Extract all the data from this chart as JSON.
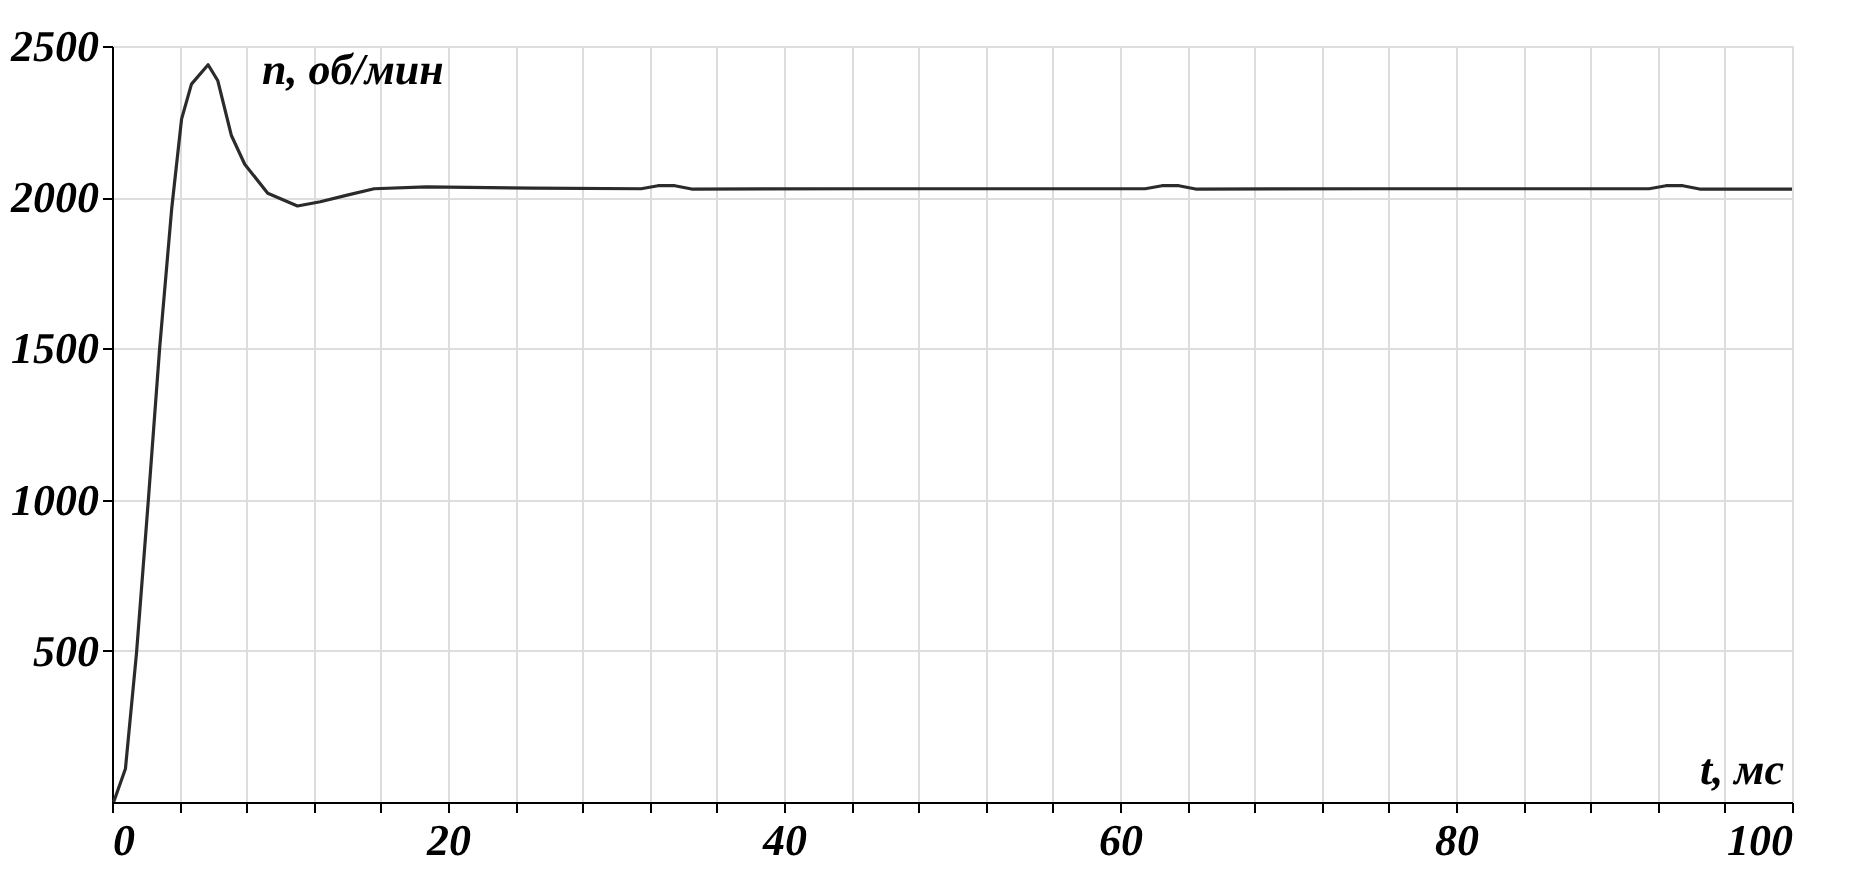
{
  "chart_data": {
    "type": "line",
    "xlabel": "t, мс",
    "ylabel": "n, об/мин",
    "x": [
      0.1,
      0.8,
      1.46,
      2.17,
      2.84,
      3.55,
      4.14,
      4.73,
      5.72,
      6.3,
      7.1,
      7.9,
      9.27,
      11.04,
      12.4,
      14.0,
      15.6,
      18.7,
      25,
      31.5,
      32.5,
      33.5,
      34.5,
      45,
      55,
      61.5,
      62.5,
      63.5,
      64.5,
      75,
      85,
      91.5,
      92.5,
      93.5,
      94.5,
      100
    ],
    "series": [
      {
        "color": "#2b2b2b",
        "values": [
          0,
          110,
          493,
          1003,
          1503,
          1960,
          2258,
          2374,
          2438,
          2385,
          2205,
          2109,
          2013,
          1971,
          1985,
          2007,
          2028,
          2034,
          2030,
          2028,
          2038,
          2038,
          2027,
          2028,
          2028,
          2028,
          2038,
          2038,
          2027,
          2028,
          2028,
          2028,
          2038,
          2038,
          2027,
          2027
        ]
      }
    ],
    "xlim": [
      0,
      100
    ],
    "ylim": [
      0,
      2500
    ],
    "xticks": [
      0,
      {
        "value": 4,
        "label": null
      },
      {
        "value": 8,
        "label": null
      },
      {
        "value": 12,
        "label": null
      },
      {
        "value": 16,
        "label": null
      },
      20,
      {
        "value": 24,
        "label": null
      },
      {
        "value": 28,
        "label": null
      },
      {
        "value": 32,
        "label": null
      },
      {
        "value": 36,
        "label": null
      },
      40,
      {
        "value": 44,
        "label": null
      },
      {
        "value": 48,
        "label": null
      },
      {
        "value": 52,
        "label": null
      },
      {
        "value": 56,
        "label": null
      },
      60,
      {
        "value": 64,
        "label": null
      },
      {
        "value": 68,
        "label": null
      },
      {
        "value": 72,
        "label": null
      },
      {
        "value": 76,
        "label": null
      },
      80,
      {
        "value": 84,
        "label": null
      },
      {
        "value": 88,
        "label": null
      },
      {
        "value": 92,
        "label": null
      },
      {
        "value": 96,
        "label": null
      },
      100
    ],
    "yticks": [
      500,
      1000,
      1500,
      2000,
      2500
    ],
    "grid": true,
    "line_style": "solid",
    "marker": "none",
    "legend": false
  }
}
